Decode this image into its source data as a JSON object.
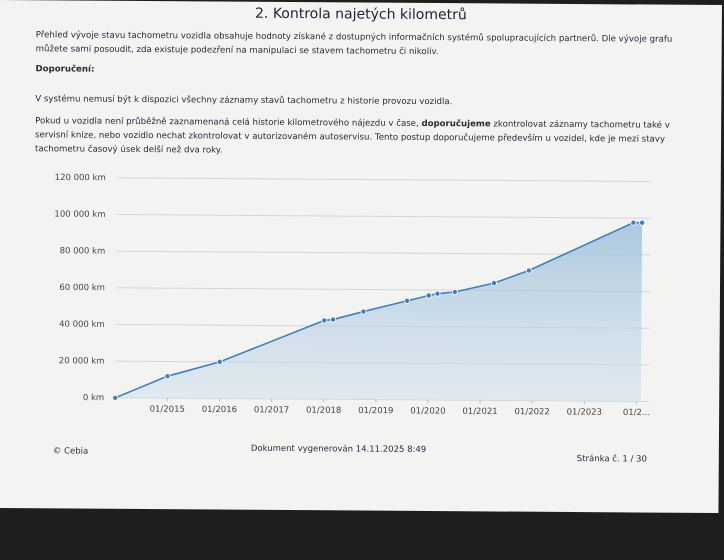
{
  "header": {
    "title": "2. Kontrola najetých kilometrů"
  },
  "paragraphs": [
    "Přehled vývoje stavu tachometru vozidla obsahuje hodnoty získané z dostupných informačních systémů spolupracujících partnerů. Dle vývoje grafu můžete sami posoudit, zda existuje podezření na manipulaci se stavem tachometru či nikoliv.",
    "Doporučení:",
    "V systému nemusí být k dispozici všechny záznamy stavů tachometru z historie provozu vozidla."
  ],
  "recommendation": [
    "Pokud u vozidla není průběžně zaznamenaná celá historie kilometrového nájezdu v čase, ",
    "doporučujeme",
    " zkontrolovat záznamy tachometru také v servisní knize, nebo vozidlo nechat zkontrolovat v autorizovaném autoservisu. Tento postup doporučujeme především u vozidel, kde je mezi stavy tachometru časový úsek delší než dva roky."
  ],
  "chart_data": {
    "type": "area",
    "x": [
      "2014-01",
      "2015-01",
      "2016-01",
      "2018-01",
      "2018-03",
      "2018-10",
      "2019-08",
      "2020-01",
      "2020-03",
      "2020-07",
      "2021-04",
      "2021-12",
      "2023-12",
      "2024-02"
    ],
    "values": [
      0,
      12000,
      20000,
      43000,
      43500,
      48000,
      54000,
      57000,
      58000,
      59000,
      64000,
      71000,
      97500,
      97500
    ],
    "color": "#3b7fc4",
    "xlim": [
      "2014-01",
      "2024-03"
    ],
    "xticks": [
      {
        "value": "2015-01",
        "label": "01/2015"
      },
      {
        "value": "2016-01",
        "label": "01/2016"
      },
      {
        "value": "2017-01",
        "label": "01/2017"
      },
      {
        "value": "2018-01",
        "label": "01/2018"
      },
      {
        "value": "2019-01",
        "label": "01/2019"
      },
      {
        "value": "2020-01",
        "label": "01/2020"
      },
      {
        "value": "2021-01",
        "label": "01/2021"
      },
      {
        "value": "2022-01",
        "label": "01/2022"
      },
      {
        "value": "2023-01",
        "label": "01/2023"
      },
      {
        "value": "2024-01",
        "label": "01/2..."
      }
    ],
    "ylim": [
      0,
      120000
    ],
    "yticks": [
      {
        "value": 0,
        "label": "0 km"
      },
      {
        "value": 20000,
        "label": "20 000 km"
      },
      {
        "value": 40000,
        "label": "40 000 km"
      },
      {
        "value": 60000,
        "label": "60 000 km"
      },
      {
        "value": 80000,
        "label": "80 000 km"
      },
      {
        "value": 100000,
        "label": "100 000 km"
      },
      {
        "value": 120000,
        "label": "120 000 km"
      }
    ],
    "grid": true
  },
  "footer": {
    "left": "© Cebia",
    "center": "Dokument vygenerován 14.11.2025 8:49",
    "right": "Stránka č. 1 / 30"
  }
}
